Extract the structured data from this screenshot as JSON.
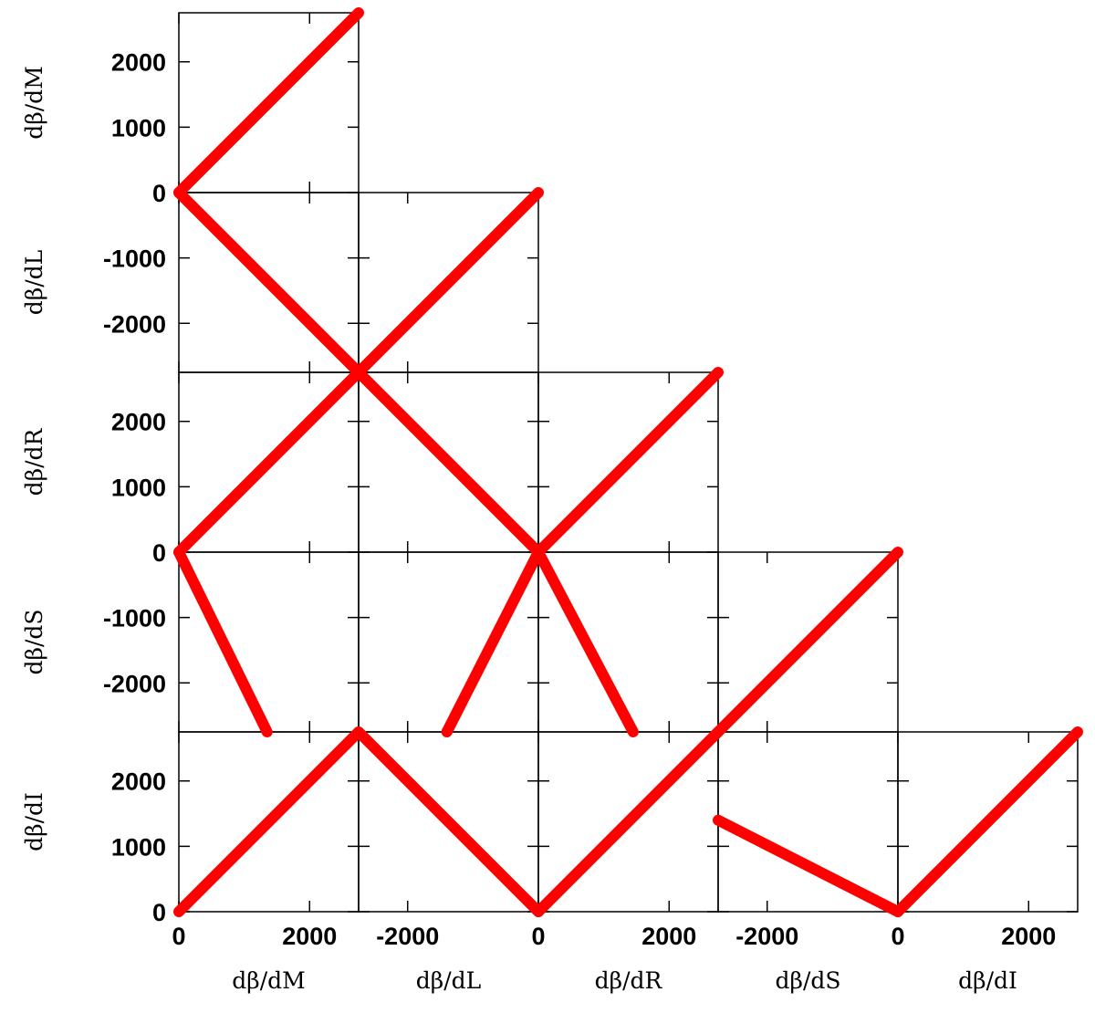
{
  "chart_data": [
    {
      "type": "line",
      "ylabel": "dβ/dM",
      "xlim": [
        0,
        2750
      ],
      "ylim": [
        0,
        2750
      ],
      "xticks": [
        0,
        2000
      ],
      "yticks": [
        0,
        1000,
        2000
      ],
      "series": [
        {
          "color": "#ff0000",
          "x": [
            0,
            2750
          ],
          "values": [
            0,
            2750
          ]
        }
      ]
    },
    {
      "type": "line",
      "ylabel": "dβ/dL",
      "xlim": [
        0,
        2750
      ],
      "ylim": [
        -2750,
        0
      ],
      "xticks": [
        0,
        2000
      ],
      "yticks": [
        -1000,
        -2000
      ],
      "series": [
        {
          "color": "#ff0000",
          "x": [
            0,
            2750
          ],
          "values": [
            0,
            -2750
          ]
        }
      ]
    },
    {
      "type": "line",
      "xlim": [
        -2750,
        0
      ],
      "ylim": [
        -2750,
        0
      ],
      "xticks": [
        -2000
      ],
      "yticks": [
        -1000,
        -2000
      ],
      "series": [
        {
          "color": "#ff0000",
          "x": [
            -2750,
            0
          ],
          "values": [
            -2750,
            0
          ]
        }
      ]
    },
    {
      "type": "line",
      "ylabel": "dβ/dR",
      "xlim": [
        0,
        2750
      ],
      "ylim": [
        0,
        2750
      ],
      "xticks": [
        0,
        2000
      ],
      "yticks": [
        0,
        1000,
        2000
      ],
      "series": [
        {
          "color": "#ff0000",
          "x": [
            0,
            2750
          ],
          "values": [
            0,
            2750
          ]
        }
      ]
    },
    {
      "type": "line",
      "xlim": [
        -2750,
        0
      ],
      "ylim": [
        0,
        2750
      ],
      "xticks": [
        -2000
      ],
      "yticks": [
        0,
        1000,
        2000
      ],
      "series": [
        {
          "color": "#ff0000",
          "x": [
            -2750,
            0
          ],
          "values": [
            2750,
            0
          ]
        }
      ]
    },
    {
      "type": "line",
      "xlim": [
        0,
        2750
      ],
      "ylim": [
        0,
        2750
      ],
      "xticks": [
        0,
        2000
      ],
      "yticks": [
        0,
        1000,
        2000
      ],
      "series": [
        {
          "color": "#ff0000",
          "x": [
            0,
            2750
          ],
          "values": [
            0,
            2750
          ]
        }
      ]
    },
    {
      "type": "line",
      "ylabel": "dβ/dS",
      "xlim": [
        0,
        2750
      ],
      "ylim": [
        -2750,
        0
      ],
      "xticks": [
        0,
        2000
      ],
      "yticks": [
        -1000,
        -2000
      ],
      "series": [
        {
          "color": "#ff0000",
          "x": [
            0,
            1350
          ],
          "values": [
            0,
            -2750
          ]
        }
      ]
    },
    {
      "type": "line",
      "xlim": [
        -2750,
        0
      ],
      "ylim": [
        -2750,
        0
      ],
      "xticks": [
        -2000
      ],
      "yticks": [
        -1000,
        -2000
      ],
      "series": [
        {
          "color": "#ff0000",
          "x": [
            -1400,
            0
          ],
          "values": [
            -2750,
            0
          ]
        }
      ]
    },
    {
      "type": "line",
      "xlim": [
        0,
        2750
      ],
      "ylim": [
        -2750,
        0
      ],
      "xticks": [
        0,
        2000
      ],
      "yticks": [
        -1000,
        -2000
      ],
      "series": [
        {
          "color": "#ff0000",
          "x": [
            0,
            1450
          ],
          "values": [
            0,
            -2750
          ]
        }
      ]
    },
    {
      "type": "line",
      "xlim": [
        -2750,
        0
      ],
      "ylim": [
        -2750,
        0
      ],
      "xticks": [
        -2000
      ],
      "yticks": [
        -1000,
        -2000
      ],
      "series": [
        {
          "color": "#ff0000",
          "x": [
            -2750,
            0
          ],
          "values": [
            -2750,
            0
          ]
        }
      ]
    },
    {
      "type": "line",
      "ylabel": "dβ/dI",
      "xlabel": "dβ/dM",
      "xlim": [
        0,
        2750
      ],
      "ylim": [
        0,
        2750
      ],
      "xticks": [
        0,
        2000
      ],
      "yticks": [
        0,
        1000,
        2000
      ],
      "series": [
        {
          "color": "#ff0000",
          "x": [
            0,
            2750
          ],
          "values": [
            0,
            2750
          ]
        }
      ]
    },
    {
      "type": "line",
      "xlabel": "dβ/dL",
      "xlim": [
        -2750,
        0
      ],
      "ylim": [
        0,
        2750
      ],
      "xticks": [
        -2000
      ],
      "yticks": [
        0,
        1000,
        2000
      ],
      "series": [
        {
          "color": "#ff0000",
          "x": [
            -2750,
            0
          ],
          "values": [
            2750,
            0
          ]
        }
      ]
    },
    {
      "type": "line",
      "xlabel": "dβ/dR",
      "xlim": [
        0,
        2750
      ],
      "ylim": [
        0,
        2750
      ],
      "xticks": [
        0,
        2000
      ],
      "yticks": [
        0,
        1000,
        2000
      ],
      "series": [
        {
          "color": "#ff0000",
          "x": [
            0,
            2750
          ],
          "values": [
            0,
            2750
          ]
        }
      ]
    },
    {
      "type": "line",
      "xlabel": "dβ/dS",
      "xlim": [
        -2750,
        0
      ],
      "ylim": [
        0,
        2750
      ],
      "xticks": [
        -2000
      ],
      "yticks": [
        0,
        1000,
        2000
      ],
      "series": [
        {
          "color": "#ff0000",
          "x": [
            -2750,
            0
          ],
          "values": [
            1400,
            0
          ]
        }
      ]
    },
    {
      "type": "line",
      "xlabel": "dβ/dI",
      "xlim": [
        0,
        2750
      ],
      "ylim": [
        0,
        2750
      ],
      "xticks": [
        0,
        2000
      ],
      "yticks": [
        0,
        1000,
        2000
      ],
      "series": [
        {
          "color": "#ff0000",
          "x": [
            0,
            2750
          ],
          "values": [
            0,
            2750
          ]
        }
      ]
    }
  ]
}
